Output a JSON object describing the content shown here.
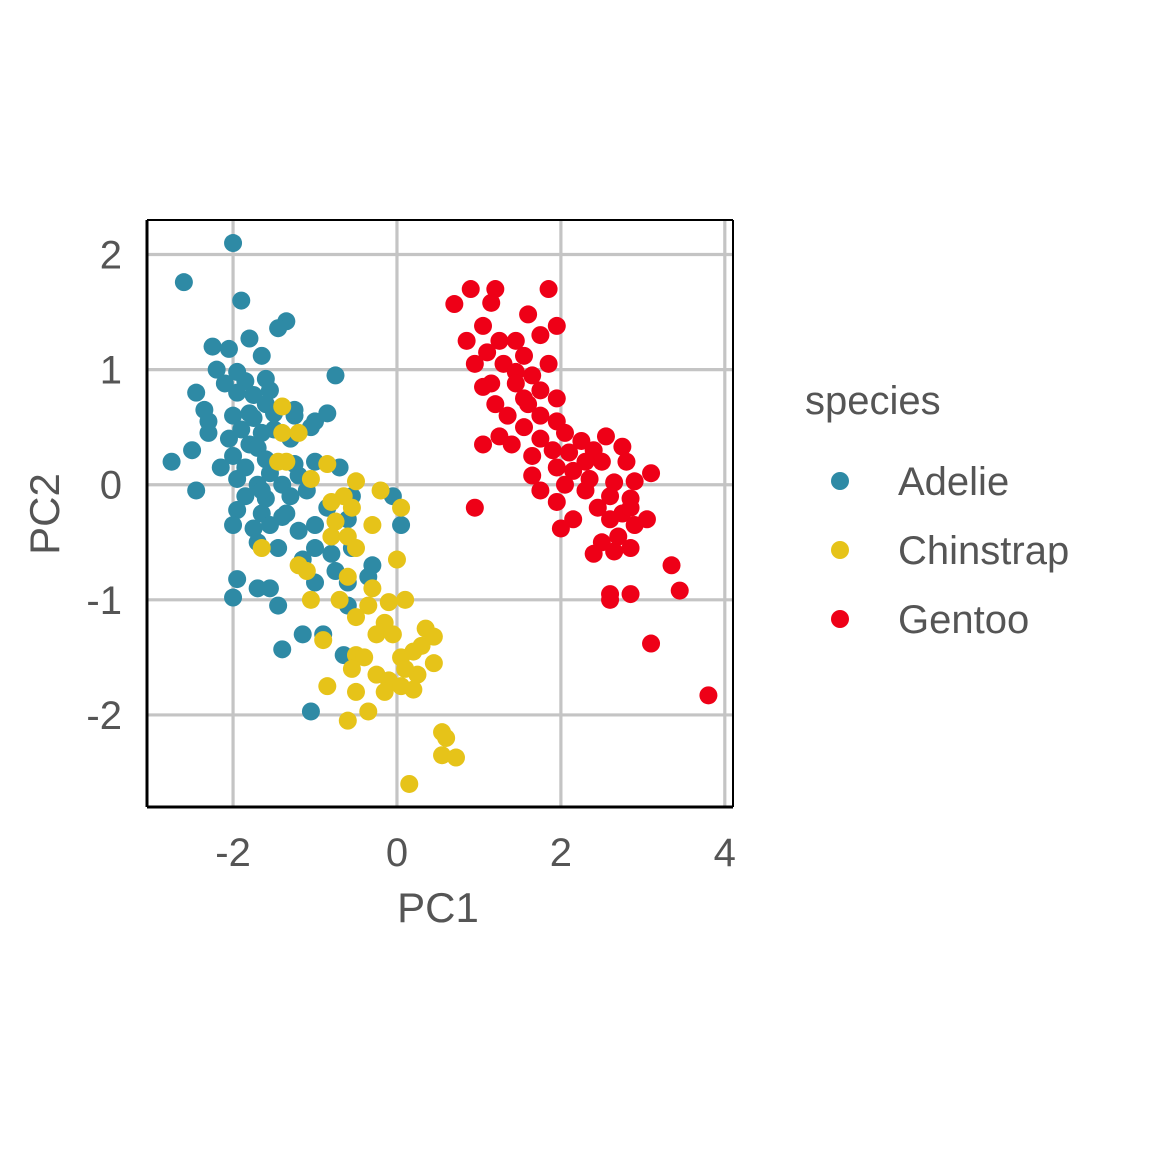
{
  "chart_data": {
    "type": "scatter",
    "xlabel": "PC1",
    "ylabel": "PC2",
    "xlim": [
      -3.05,
      4.1
    ],
    "ylim": [
      -2.8,
      2.3
    ],
    "x_ticks": [
      -2,
      0,
      2,
      4
    ],
    "x_tick_labels": [
      "-2",
      "0",
      "2",
      "4"
    ],
    "y_ticks": [
      2,
      1,
      0,
      -1,
      -2
    ],
    "y_tick_labels": [
      "2",
      "1",
      "0",
      "-1",
      "-2"
    ],
    "grid": true,
    "legend": {
      "title": "species",
      "placement": "right",
      "entries": [
        "Adelie",
        "Chinstrap",
        "Gentoo"
      ]
    },
    "colors": {
      "Adelie": "#2e8aa5",
      "Chinstrap": "#e6c319",
      "Gentoo": "#ee0017",
      "grid": "#c4c4c4",
      "axis": "#000000"
    },
    "series": [
      {
        "name": "Adelie",
        "points": [
          [
            -2.0,
            2.1
          ],
          [
            -2.6,
            1.76
          ],
          [
            -1.9,
            1.6
          ],
          [
            -1.35,
            1.42
          ],
          [
            -1.45,
            1.36
          ],
          [
            -1.8,
            1.27
          ],
          [
            -2.25,
            1.2
          ],
          [
            -2.05,
            1.18
          ],
          [
            -1.65,
            1.12
          ],
          [
            -2.2,
            1.0
          ],
          [
            -1.95,
            0.98
          ],
          [
            -2.1,
            0.88
          ],
          [
            -1.85,
            0.9
          ],
          [
            -1.6,
            0.92
          ],
          [
            -2.45,
            0.8
          ],
          [
            -1.95,
            0.8
          ],
          [
            -1.75,
            0.78
          ],
          [
            -1.6,
            0.7
          ],
          [
            -2.35,
            0.65
          ],
          [
            -2.0,
            0.6
          ],
          [
            -1.75,
            0.58
          ],
          [
            -1.5,
            0.62
          ],
          [
            -1.25,
            0.6
          ],
          [
            -2.3,
            0.55
          ],
          [
            -1.9,
            0.48
          ],
          [
            -1.65,
            0.45
          ],
          [
            -2.05,
            0.4
          ],
          [
            -1.8,
            0.35
          ],
          [
            -2.3,
            0.45
          ],
          [
            -2.5,
            0.3
          ],
          [
            -1.7,
            0.32
          ],
          [
            -2.0,
            0.25
          ],
          [
            -1.6,
            0.22
          ],
          [
            -2.75,
            0.2
          ],
          [
            -1.85,
            0.15
          ],
          [
            -1.55,
            0.1
          ],
          [
            -1.25,
            0.18
          ],
          [
            -1.95,
            0.05
          ],
          [
            -1.7,
            0.0
          ],
          [
            -1.4,
            0.0
          ],
          [
            -2.45,
            -0.05
          ],
          [
            -1.85,
            -0.1
          ],
          [
            -1.6,
            -0.12
          ],
          [
            -1.3,
            -0.1
          ],
          [
            -1.1,
            -0.05
          ],
          [
            -1.95,
            -0.22
          ],
          [
            -1.65,
            -0.25
          ],
          [
            -1.4,
            -0.28
          ],
          [
            -2.0,
            -0.35
          ],
          [
            -1.75,
            -0.38
          ],
          [
            -1.55,
            -0.35
          ],
          [
            -1.2,
            -0.4
          ],
          [
            -1.0,
            -0.35
          ],
          [
            -0.85,
            -0.2
          ],
          [
            -0.6,
            -0.3
          ],
          [
            -1.7,
            -0.5
          ],
          [
            -1.45,
            -0.55
          ],
          [
            -1.0,
            -0.55
          ],
          [
            -0.8,
            -0.6
          ],
          [
            -0.55,
            -0.55
          ],
          [
            -1.15,
            -0.65
          ],
          [
            -0.75,
            -0.75
          ],
          [
            -0.3,
            -0.7
          ],
          [
            -1.95,
            -0.82
          ],
          [
            -1.7,
            -0.9
          ],
          [
            -1.55,
            -0.9
          ],
          [
            -1.0,
            -0.85
          ],
          [
            -0.6,
            -0.85
          ],
          [
            -0.35,
            -0.8
          ],
          [
            -2.0,
            -0.98
          ],
          [
            -1.45,
            -1.05
          ],
          [
            -0.6,
            -1.05
          ],
          [
            -1.15,
            -1.3
          ],
          [
            -0.9,
            -1.3
          ],
          [
            -1.4,
            -1.43
          ],
          [
            -0.65,
            -1.48
          ],
          [
            -1.05,
            -1.97
          ],
          [
            -1.25,
            0.65
          ],
          [
            -0.75,
            0.95
          ],
          [
            -1.0,
            0.55
          ],
          [
            -0.85,
            0.62
          ],
          [
            -1.05,
            0.5
          ],
          [
            -0.7,
            0.15
          ],
          [
            -1.0,
            0.2
          ],
          [
            -0.55,
            -0.1
          ],
          [
            0.05,
            -0.35
          ],
          [
            -0.05,
            -0.1
          ],
          [
            -1.3,
            0.4
          ],
          [
            -1.5,
            0.48
          ],
          [
            -1.65,
            -0.05
          ],
          [
            -1.35,
            -0.25
          ],
          [
            -1.2,
            0.08
          ],
          [
            -2.15,
            0.15
          ],
          [
            -1.8,
            0.62
          ],
          [
            -1.55,
            0.82
          ]
        ]
      },
      {
        "name": "Chinstrap",
        "points": [
          [
            -1.4,
            0.68
          ],
          [
            -1.4,
            0.45
          ],
          [
            -1.2,
            0.45
          ],
          [
            -1.35,
            0.2
          ],
          [
            -1.45,
            0.2
          ],
          [
            -1.05,
            0.05
          ],
          [
            -0.85,
            0.18
          ],
          [
            -0.5,
            0.03
          ],
          [
            -0.65,
            -0.1
          ],
          [
            -0.8,
            -0.15
          ],
          [
            -0.55,
            -0.2
          ],
          [
            -0.2,
            -0.05
          ],
          [
            0.05,
            -0.2
          ],
          [
            -0.75,
            -0.32
          ],
          [
            -0.8,
            -0.45
          ],
          [
            -0.6,
            -0.45
          ],
          [
            -0.5,
            -0.55
          ],
          [
            -0.3,
            -0.35
          ],
          [
            -1.65,
            -0.55
          ],
          [
            -1.2,
            -0.7
          ],
          [
            -1.1,
            -0.75
          ],
          [
            -0.6,
            -0.8
          ],
          [
            -0.3,
            -0.9
          ],
          [
            0.0,
            -0.65
          ],
          [
            -0.7,
            -1.0
          ],
          [
            -0.5,
            -1.15
          ],
          [
            -0.35,
            -1.05
          ],
          [
            -0.1,
            -1.02
          ],
          [
            0.1,
            -1.0
          ],
          [
            -0.15,
            -1.2
          ],
          [
            -0.25,
            -1.3
          ],
          [
            -0.05,
            -1.3
          ],
          [
            0.35,
            -1.25
          ],
          [
            -1.05,
            -1.0
          ],
          [
            -0.9,
            -1.35
          ],
          [
            -0.5,
            -1.48
          ],
          [
            -0.4,
            -1.5
          ],
          [
            -0.55,
            -1.6
          ],
          [
            -0.25,
            -1.65
          ],
          [
            0.05,
            -1.5
          ],
          [
            -0.1,
            -1.7
          ],
          [
            0.05,
            -1.75
          ],
          [
            0.2,
            -1.45
          ],
          [
            0.3,
            -1.4
          ],
          [
            0.45,
            -1.32
          ],
          [
            0.45,
            -1.55
          ],
          [
            -0.85,
            -1.75
          ],
          [
            -0.5,
            -1.8
          ],
          [
            0.2,
            -1.78
          ],
          [
            -0.6,
            -2.05
          ],
          [
            -0.35,
            -1.97
          ],
          [
            0.55,
            -2.15
          ],
          [
            0.6,
            -2.2
          ],
          [
            0.55,
            -2.35
          ],
          [
            0.72,
            -2.37
          ],
          [
            0.15,
            -2.6
          ],
          [
            0.25,
            -1.65
          ],
          [
            0.1,
            -1.6
          ],
          [
            -0.15,
            -1.8
          ]
        ]
      },
      {
        "name": "Gentoo",
        "points": [
          [
            0.9,
            1.7
          ],
          [
            1.2,
            1.7
          ],
          [
            1.85,
            1.7
          ],
          [
            0.7,
            1.57
          ],
          [
            1.15,
            1.58
          ],
          [
            1.6,
            1.48
          ],
          [
            1.05,
            1.38
          ],
          [
            1.95,
            1.38
          ],
          [
            1.25,
            1.25
          ],
          [
            1.45,
            1.25
          ],
          [
            1.75,
            1.3
          ],
          [
            1.1,
            1.15
          ],
          [
            1.55,
            1.12
          ],
          [
            0.95,
            1.05
          ],
          [
            1.3,
            1.05
          ],
          [
            1.85,
            1.05
          ],
          [
            1.45,
            0.98
          ],
          [
            1.65,
            0.95
          ],
          [
            1.15,
            0.88
          ],
          [
            1.45,
            0.88
          ],
          [
            1.75,
            0.82
          ],
          [
            1.55,
            0.75
          ],
          [
            1.95,
            0.75
          ],
          [
            1.2,
            0.7
          ],
          [
            1.6,
            0.7
          ],
          [
            1.05,
            0.85
          ],
          [
            1.35,
            0.6
          ],
          [
            1.75,
            0.6
          ],
          [
            1.95,
            0.55
          ],
          [
            1.55,
            0.5
          ],
          [
            2.05,
            0.45
          ],
          [
            1.25,
            0.42
          ],
          [
            1.75,
            0.4
          ],
          [
            2.25,
            0.38
          ],
          [
            2.55,
            0.42
          ],
          [
            1.9,
            0.3
          ],
          [
            2.1,
            0.28
          ],
          [
            2.4,
            0.3
          ],
          [
            2.75,
            0.33
          ],
          [
            1.65,
            0.25
          ],
          [
            1.95,
            0.15
          ],
          [
            2.15,
            0.12
          ],
          [
            2.5,
            0.2
          ],
          [
            2.8,
            0.2
          ],
          [
            1.65,
            0.08
          ],
          [
            2.05,
            0.0
          ],
          [
            2.35,
            0.05
          ],
          [
            2.65,
            0.02
          ],
          [
            2.9,
            0.03
          ],
          [
            2.3,
            -0.05
          ],
          [
            2.6,
            -0.1
          ],
          [
            2.85,
            -0.12
          ],
          [
            1.75,
            -0.05
          ],
          [
            1.95,
            -0.15
          ],
          [
            2.45,
            -0.2
          ],
          [
            2.75,
            -0.25
          ],
          [
            3.05,
            -0.3
          ],
          [
            2.6,
            -0.3
          ],
          [
            2.9,
            -0.35
          ],
          [
            2.15,
            -0.3
          ],
          [
            2.0,
            -0.38
          ],
          [
            2.7,
            -0.45
          ],
          [
            2.5,
            -0.5
          ],
          [
            2.85,
            -0.55
          ],
          [
            2.65,
            -0.58
          ],
          [
            3.35,
            -0.7
          ],
          [
            2.4,
            -0.6
          ],
          [
            3.1,
            0.1
          ],
          [
            2.3,
            0.2
          ],
          [
            1.05,
            0.35
          ],
          [
            2.6,
            -0.95
          ],
          [
            2.6,
            -1.0
          ],
          [
            2.85,
            -0.95
          ],
          [
            3.45,
            -0.92
          ],
          [
            3.1,
            -1.38
          ],
          [
            3.8,
            -1.83
          ],
          [
            0.85,
            1.25
          ],
          [
            1.4,
            0.35
          ],
          [
            0.95,
            -0.2
          ],
          [
            2.85,
            -0.2
          ]
        ]
      }
    ]
  }
}
